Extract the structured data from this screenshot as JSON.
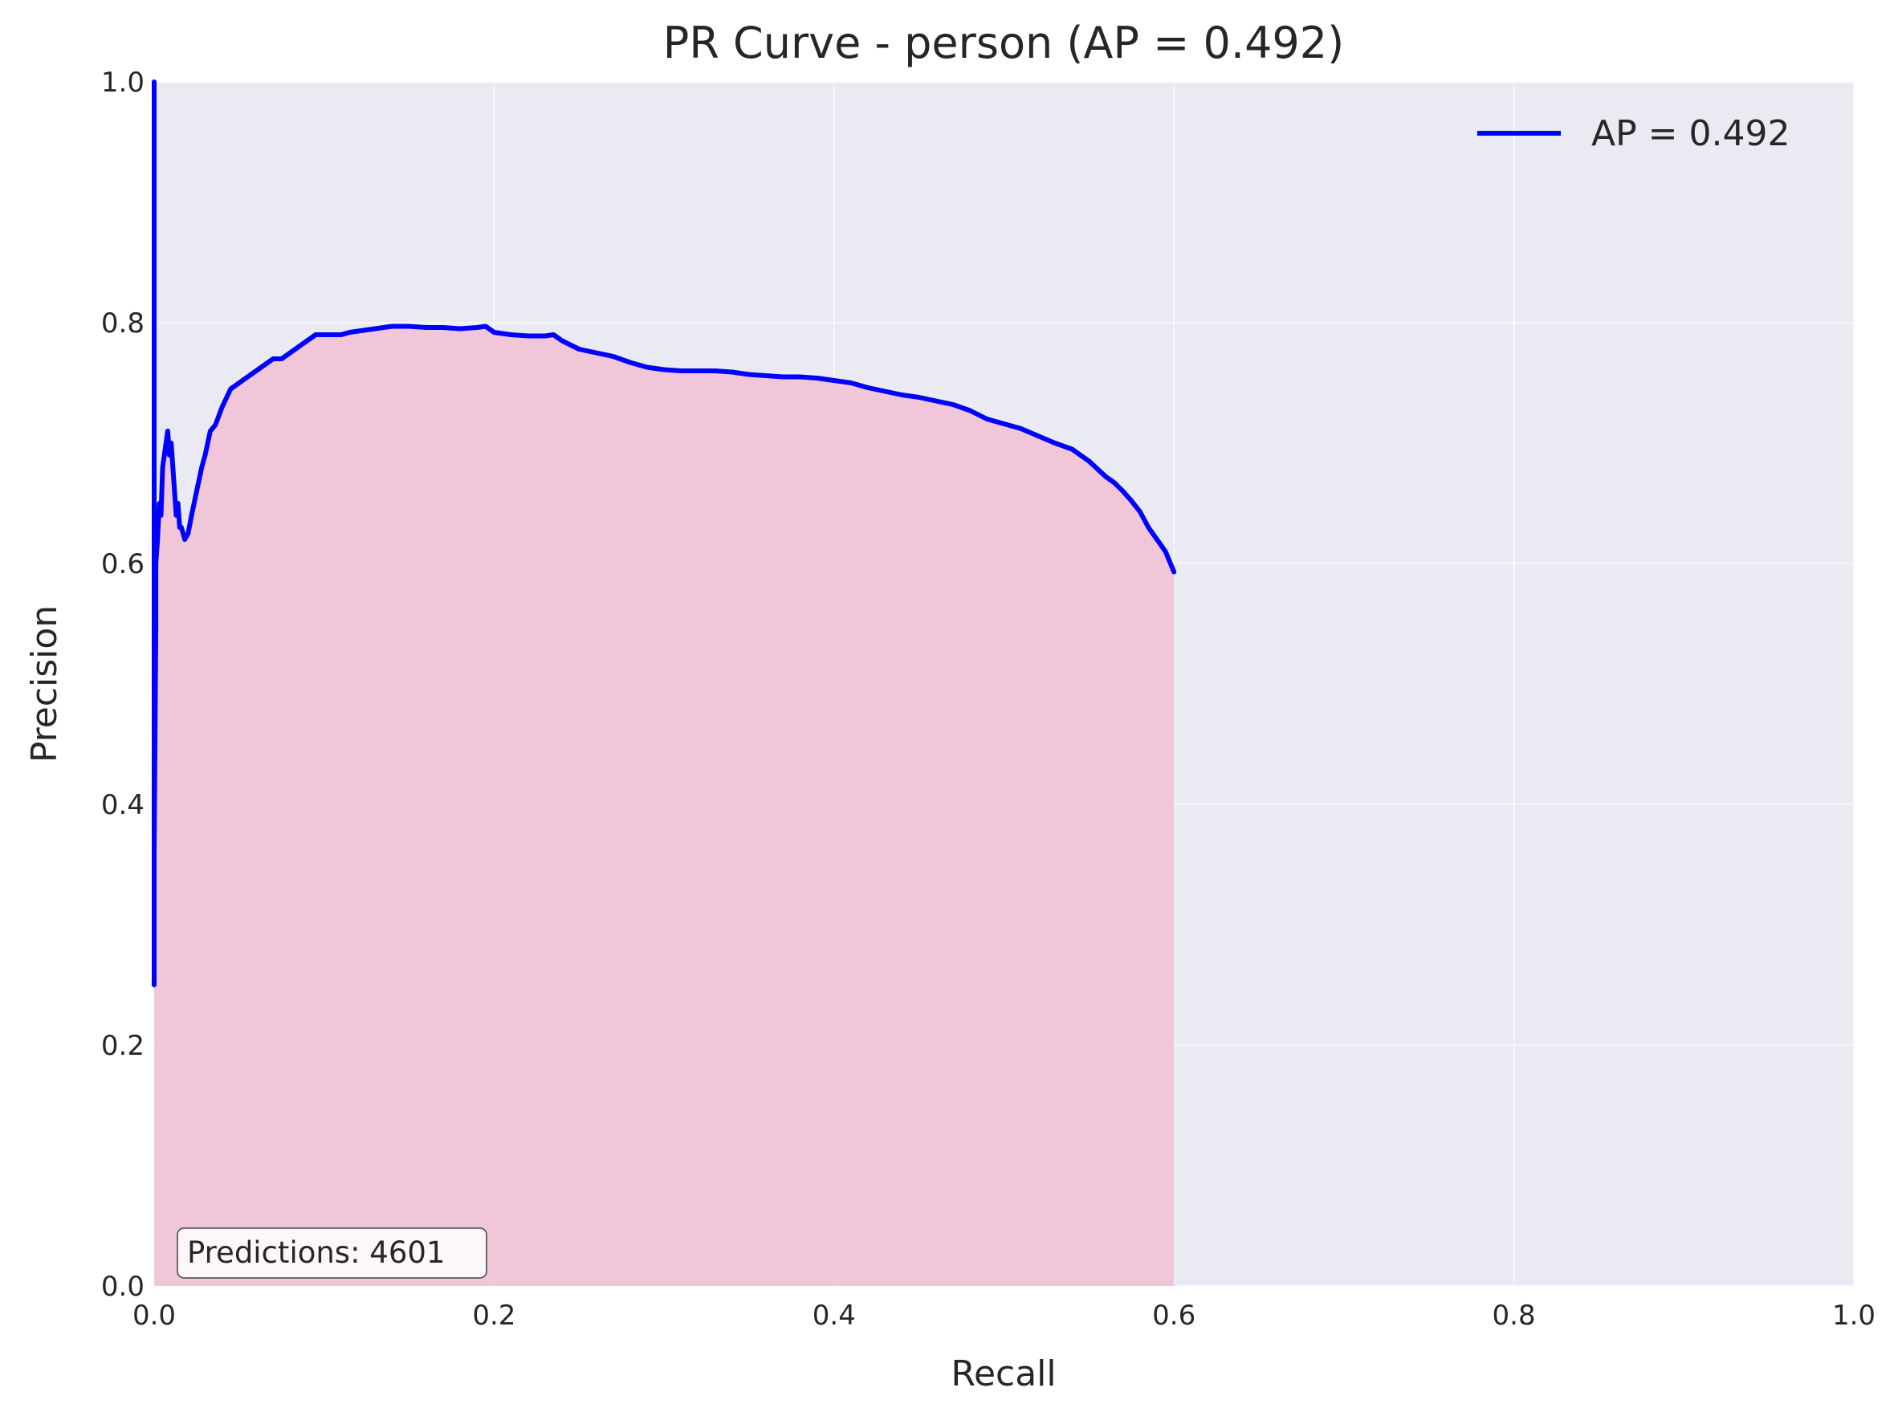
{
  "chart_data": {
    "type": "line",
    "title": "PR Curve - person (AP = 0.492)",
    "xlabel": "Recall",
    "ylabel": "Precision",
    "xlim": [
      0.0,
      1.0
    ],
    "ylim": [
      0.0,
      1.0
    ],
    "xticks": [
      "0.0",
      "0.2",
      "0.4",
      "0.6",
      "0.8",
      "1.0"
    ],
    "yticks": [
      "0.0",
      "0.2",
      "0.4",
      "0.6",
      "0.8",
      "1.0"
    ],
    "grid": true,
    "legend_position": "top-right",
    "series": [
      {
        "name": "AP = 0.492",
        "color": "#0000ff",
        "fill_color": "#f2b9cf",
        "x": [
          0.0,
          0.0,
          0.0,
          0.001,
          0.001,
          0.002,
          0.003,
          0.004,
          0.005,
          0.006,
          0.007,
          0.008,
          0.009,
          0.01,
          0.011,
          0.012,
          0.013,
          0.014,
          0.015,
          0.016,
          0.018,
          0.02,
          0.022,
          0.025,
          0.028,
          0.03,
          0.033,
          0.036,
          0.04,
          0.045,
          0.05,
          0.055,
          0.06,
          0.065,
          0.07,
          0.075,
          0.08,
          0.085,
          0.09,
          0.095,
          0.1,
          0.105,
          0.11,
          0.115,
          0.12,
          0.13,
          0.14,
          0.15,
          0.16,
          0.17,
          0.18,
          0.19,
          0.195,
          0.2,
          0.21,
          0.22,
          0.23,
          0.235,
          0.24,
          0.25,
          0.26,
          0.27,
          0.28,
          0.29,
          0.3,
          0.31,
          0.32,
          0.33,
          0.34,
          0.35,
          0.36,
          0.37,
          0.38,
          0.39,
          0.4,
          0.41,
          0.42,
          0.43,
          0.44,
          0.45,
          0.46,
          0.47,
          0.48,
          0.49,
          0.5,
          0.51,
          0.52,
          0.53,
          0.54,
          0.55,
          0.56,
          0.565,
          0.57,
          0.575,
          0.58,
          0.585,
          0.59,
          0.595,
          0.6
        ],
        "y": [
          0.25,
          1.0,
          0.36,
          0.55,
          0.6,
          0.62,
          0.65,
          0.64,
          0.68,
          0.69,
          0.7,
          0.71,
          0.69,
          0.7,
          0.68,
          0.66,
          0.64,
          0.65,
          0.63,
          0.63,
          0.62,
          0.625,
          0.64,
          0.66,
          0.68,
          0.69,
          0.71,
          0.715,
          0.73,
          0.745,
          0.75,
          0.755,
          0.76,
          0.765,
          0.77,
          0.77,
          0.775,
          0.78,
          0.785,
          0.79,
          0.79,
          0.79,
          0.79,
          0.792,
          0.793,
          0.795,
          0.797,
          0.797,
          0.796,
          0.796,
          0.795,
          0.796,
          0.797,
          0.792,
          0.79,
          0.789,
          0.789,
          0.79,
          0.785,
          0.778,
          0.775,
          0.772,
          0.767,
          0.763,
          0.761,
          0.76,
          0.76,
          0.76,
          0.759,
          0.757,
          0.756,
          0.755,
          0.755,
          0.754,
          0.752,
          0.75,
          0.746,
          0.743,
          0.74,
          0.738,
          0.735,
          0.732,
          0.727,
          0.72,
          0.716,
          0.712,
          0.706,
          0.7,
          0.695,
          0.685,
          0.672,
          0.667,
          0.66,
          0.652,
          0.643,
          0.63,
          0.62,
          0.61,
          0.593
        ]
      }
    ],
    "annotation": "Predictions: 4601"
  }
}
